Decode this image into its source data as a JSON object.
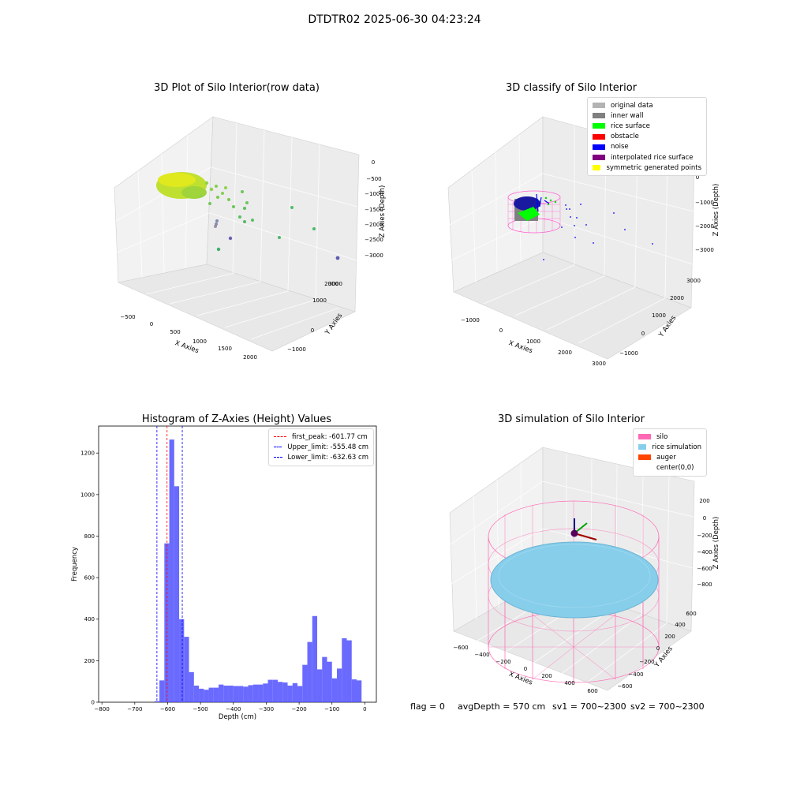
{
  "figure_title": "DTDTR02 2025-06-30 04:23:24",
  "status_line": {
    "flag": "flag = 0",
    "avg_depth": "avgDepth = 570 cm",
    "sv1": "sv1 = 700~2300",
    "sv2": "sv2 = 700~2300"
  },
  "chart_data": [
    {
      "type": "scatter",
      "projection": "3d",
      "title": "3D Plot of Silo Interior(row data)",
      "xlabel": "X Axies",
      "ylabel": "Y Axies",
      "zlabel": "Z Axies (Depth)",
      "xticks": [
        "−500",
        "0",
        "500",
        "1000",
        "1500",
        "2000"
      ],
      "yticks": [
        "−1000",
        "0",
        "1000",
        "2000",
        "3000"
      ],
      "zticks": [
        "0",
        "−500",
        "−1000",
        "−1500",
        "−2000",
        "−2500",
        "−3000"
      ],
      "colormap": "viridis",
      "grid": true
    },
    {
      "type": "scatter",
      "projection": "3d",
      "title": "3D classify of Silo Interior",
      "xlabel": "X Axies",
      "ylabel": "Y Axies",
      "zlabel": "Z Axies (Depth)",
      "xticks": [
        "−1000",
        "0",
        "1000",
        "2000",
        "3000"
      ],
      "yticks": [
        "−1000",
        "0",
        "1000",
        "2000",
        "3000"
      ],
      "zticks": [
        "0",
        "−1000",
        "−2000",
        "−3000"
      ],
      "legend_position": "top-right",
      "legend": [
        {
          "label": "original data",
          "color": "#b3b3b3"
        },
        {
          "label": "inner wall",
          "color": "#808080"
        },
        {
          "label": "rice surface",
          "color": "#00ff00"
        },
        {
          "label": "obstacle",
          "color": "#ff0000"
        },
        {
          "label": "noise",
          "color": "#0000ff"
        },
        {
          "label": "interpolated rice surface",
          "color": "#800080"
        },
        {
          "label": "symmetric generated points",
          "color": "#ffff00"
        }
      ],
      "grid": true
    },
    {
      "type": "bar",
      "title": "Histogram of Z-Axies (Height) Values",
      "xlabel": "Depth (cm)",
      "ylabel": "Frequency",
      "xlim": [
        -810,
        35
      ],
      "ylim": [
        0,
        1330
      ],
      "xticks": [
        "−800",
        "−700",
        "−600",
        "−500",
        "−400",
        "−300",
        "−200",
        "−100",
        "0"
      ],
      "yticks": [
        "0",
        "200",
        "400",
        "600",
        "800",
        "1000",
        "1200"
      ],
      "bin_width": 15,
      "bar_color": "#5050ff",
      "bins": [
        {
          "left": -640,
          "value": 5
        },
        {
          "left": -625,
          "value": 105
        },
        {
          "left": -610,
          "value": 765
        },
        {
          "left": -595,
          "value": 1265
        },
        {
          "left": -580,
          "value": 1040
        },
        {
          "left": -565,
          "value": 400
        },
        {
          "left": -550,
          "value": 315
        },
        {
          "left": -535,
          "value": 145
        },
        {
          "left": -520,
          "value": 80
        },
        {
          "left": -505,
          "value": 65
        },
        {
          "left": -490,
          "value": 60
        },
        {
          "left": -475,
          "value": 70
        },
        {
          "left": -460,
          "value": 70
        },
        {
          "left": -445,
          "value": 85
        },
        {
          "left": -430,
          "value": 80
        },
        {
          "left": -415,
          "value": 80
        },
        {
          "left": -400,
          "value": 78
        },
        {
          "left": -385,
          "value": 78
        },
        {
          "left": -370,
          "value": 75
        },
        {
          "left": -355,
          "value": 82
        },
        {
          "left": -340,
          "value": 85
        },
        {
          "left": -325,
          "value": 85
        },
        {
          "left": -310,
          "value": 90
        },
        {
          "left": -295,
          "value": 108
        },
        {
          "left": -280,
          "value": 108
        },
        {
          "left": -265,
          "value": 98
        },
        {
          "left": -250,
          "value": 95
        },
        {
          "left": -235,
          "value": 80
        },
        {
          "left": -220,
          "value": 92
        },
        {
          "left": -205,
          "value": 78
        },
        {
          "left": -190,
          "value": 180
        },
        {
          "left": -175,
          "value": 290
        },
        {
          "left": -160,
          "value": 415
        },
        {
          "left": -145,
          "value": 158
        },
        {
          "left": -130,
          "value": 218
        },
        {
          "left": -115,
          "value": 195
        },
        {
          "left": -100,
          "value": 115
        },
        {
          "left": -85,
          "value": 162
        },
        {
          "left": -70,
          "value": 308
        },
        {
          "left": -55,
          "value": 298
        },
        {
          "left": -40,
          "value": 110
        },
        {
          "left": -25,
          "value": 105
        }
      ],
      "vlines": [
        {
          "label": "first_peak: -601.77 cm",
          "x": -601.77,
          "color": "#ff0000"
        },
        {
          "label": "Upper_limit: -555.48 cm",
          "x": -555.48,
          "color": "#0000ff"
        },
        {
          "label": "Lower_limit: -632.63 cm",
          "x": -632.63,
          "color": "#0000ff"
        }
      ],
      "legend_position": "top-right"
    },
    {
      "type": "surface",
      "projection": "3d",
      "title": "3D simulation of Silo Interior",
      "xlabel": "X Axies",
      "ylabel": "Y Axies",
      "zlabel": "Z Axies (Depth)",
      "xticks": [
        "−600",
        "−400",
        "−200",
        "0",
        "200",
        "400",
        "600"
      ],
      "yticks": [
        "−600",
        "−400",
        "−200",
        "0",
        "200",
        "400",
        "600"
      ],
      "zticks": [
        "200",
        "0",
        "−200",
        "−400",
        "−600",
        "−800"
      ],
      "legend_position": "top-right",
      "legend": [
        {
          "label": "silo",
          "color": "#ff69b4"
        },
        {
          "label": "rice simulation",
          "color": "#87ceeb"
        },
        {
          "label": "auger",
          "color": "#ff4500"
        },
        {
          "label": "center(0,0)",
          "color": ""
        }
      ],
      "avg_depth_cm": 570,
      "grid": true
    }
  ]
}
